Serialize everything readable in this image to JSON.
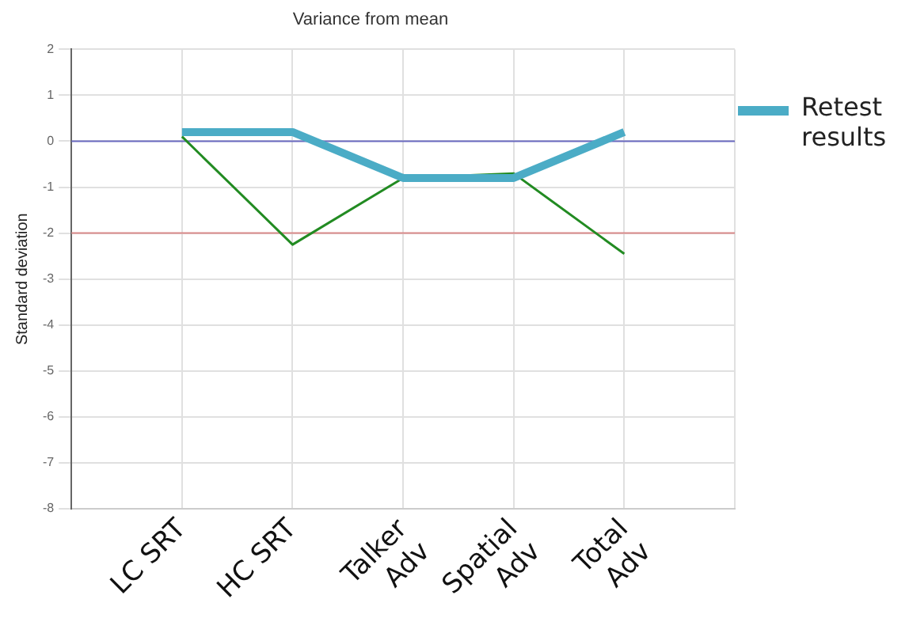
{
  "chart_data": {
    "type": "line",
    "title": "Variance from mean",
    "ylabel": "Standard deviation",
    "categories": [
      "LC SRT",
      "HC SRT",
      "Talker\nAdv",
      "Spatial\nAdv",
      "Total\nAdv"
    ],
    "series": [
      {
        "name": "Retest results",
        "color": "#4bacc6",
        "values": [
          0.2,
          0.2,
          -0.8,
          -0.8,
          0.2
        ]
      },
      {
        "color": "#228b22",
        "values": [
          0.1,
          -2.25,
          -0.8,
          -0.7,
          -2.45
        ]
      }
    ],
    "ylim": [
      -8,
      2
    ],
    "yticks": [
      -8,
      -7,
      -6,
      -5,
      -4,
      -3,
      -2,
      -1,
      0,
      1,
      2
    ],
    "ref_lines": [
      {
        "axis": "y",
        "value": 0,
        "color": "#6a6ac0"
      },
      {
        "axis": "y",
        "value": -2,
        "color": "#d98a8a"
      }
    ],
    "grid": true,
    "legend": "right",
    "marker": "none",
    "line_style": "solid"
  }
}
